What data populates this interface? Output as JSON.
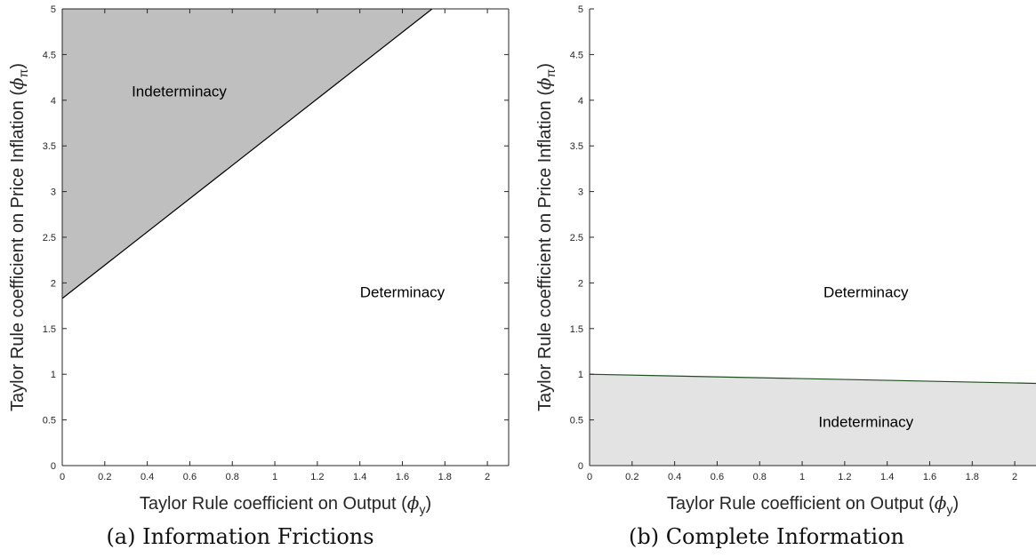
{
  "figure": {
    "captions": [
      "(a) Information Frictions",
      "(b) Complete Information"
    ]
  },
  "chart_data": [
    {
      "type": "area",
      "title": "",
      "xlabel": "Taylor Rule coefficient on Output (ϕ_y)",
      "ylabel": "Taylor Rule coefficient on Price Inflation (ϕ_π)",
      "xlabel_parts": {
        "text": "Taylor Rule coefficient on Output (",
        "symbol": "ϕ",
        "sub": "y",
        "close": ")"
      },
      "ylabel_parts": {
        "text": "Taylor Rule coefficient on Price Inflation (",
        "symbol": "ϕ",
        "sub": "π",
        "close": ")"
      },
      "xlim": [
        0,
        2.1
      ],
      "ylim": [
        0,
        5
      ],
      "xticks": [
        0,
        0.2,
        0.4,
        0.6,
        0.8,
        1,
        1.2,
        1.4,
        1.6,
        1.8,
        2
      ],
      "yticks": [
        0,
        0.5,
        1,
        1.5,
        2,
        2.5,
        3,
        3.5,
        4,
        4.5,
        5
      ],
      "boundary": {
        "x": [
          0,
          1.74
        ],
        "y": [
          1.83,
          5.0
        ]
      },
      "shaded_region": "above",
      "fill_color": "#bfbfbf",
      "line_color": "#000000",
      "region_labels": [
        {
          "text": "Indeterminacy",
          "x": 0.55,
          "y": 4.1
        },
        {
          "text": "Determinacy",
          "x": 1.6,
          "y": 1.9
        }
      ],
      "grid": false
    },
    {
      "type": "area",
      "title": "",
      "xlabel": "Taylor Rule coefficient on Output (ϕ_y)",
      "ylabel": "Taylor Rule coefficient on Price Inflation (ϕ_π)",
      "xlabel_parts": {
        "text": "Taylor Rule coefficient on Output (",
        "symbol": "ϕ",
        "sub": "y",
        "close": ")"
      },
      "ylabel_parts": {
        "text": "Taylor Rule coefficient on Price Inflation (",
        "symbol": "ϕ",
        "sub": "π",
        "close": ")"
      },
      "xlim": [
        0,
        2.1
      ],
      "ylim": [
        0,
        5
      ],
      "xticks": [
        0,
        0.2,
        0.4,
        0.6,
        0.8,
        1,
        1.2,
        1.4,
        1.6,
        1.8,
        2
      ],
      "yticks": [
        0,
        0.5,
        1,
        1.5,
        2,
        2.5,
        3,
        3.5,
        4,
        4.5,
        5
      ],
      "boundary": {
        "x": [
          0,
          2.1
        ],
        "y": [
          1.0,
          0.9
        ]
      },
      "shaded_region": "below",
      "fill_color": "#e3e3e3",
      "line_color": "#1f4d1f",
      "region_labels": [
        {
          "text": "Indeterminacy",
          "x": 1.3,
          "y": 0.48
        },
        {
          "text": "Determinacy",
          "x": 1.3,
          "y": 1.9
        }
      ],
      "grid": false
    }
  ]
}
